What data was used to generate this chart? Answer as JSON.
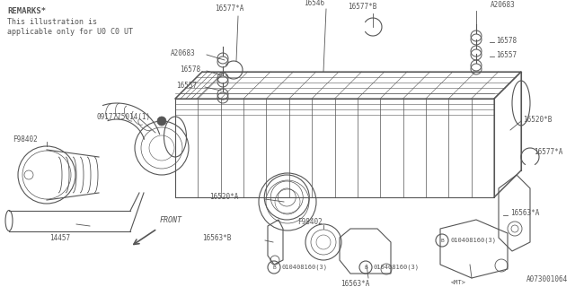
{
  "bg_color": "#ffffff",
  "line_color": "#555555",
  "lw": 0.8,
  "remarks": [
    "REMARKS*",
    "This illustration is",
    "applicable only for U0 C0 UT"
  ],
  "diagram_id": "A073001064",
  "figsize": [
    6.4,
    3.2
  ],
  "dpi": 100
}
